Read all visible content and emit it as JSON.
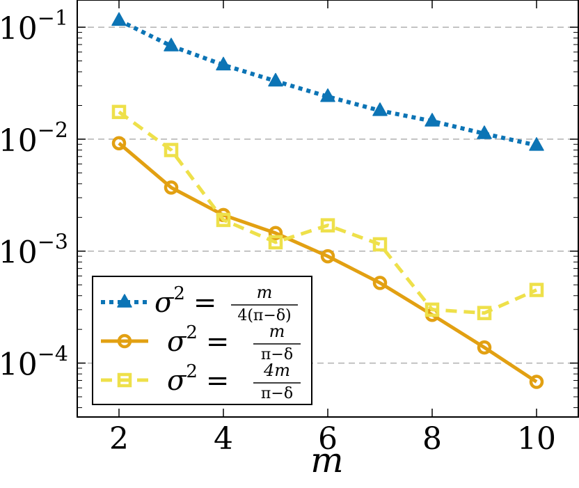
{
  "chart_data": {
    "type": "line",
    "xlabel": "m",
    "ylabel": "",
    "scale": {
      "x": "linear",
      "y": "log"
    },
    "xlim": [
      1.2,
      10.8
    ],
    "ylim": [
      3.3e-05,
      0.175
    ],
    "grid": "horizontal dashed at y major ticks",
    "legend_position": "bottom-left",
    "x_ticks": [
      2,
      4,
      6,
      8,
      10
    ],
    "x_tick_labels": [
      "2",
      "4",
      "6",
      "8",
      "10"
    ],
    "y_ticks": [
      0.1,
      0.01,
      0.001,
      0.0001
    ],
    "y_tick_labels": [
      {
        "base": "10",
        "exp": "−1"
      },
      {
        "base": "10",
        "exp": "−2"
      },
      {
        "base": "10",
        "exp": "−3"
      },
      {
        "base": "10",
        "exp": "−4"
      }
    ],
    "series": [
      {
        "legend": {
          "lhs": "σ",
          "sup": "2",
          "eq": "=",
          "num": "m",
          "den": "4(π−δ)"
        },
        "color": "#0C74B5",
        "line_style": "dotted",
        "marker": "triangle",
        "x": [
          2,
          3,
          4,
          5,
          6,
          7,
          8,
          9,
          10
        ],
        "y": [
          0.115,
          0.068,
          0.046,
          0.033,
          0.024,
          0.018,
          0.0145,
          0.0112,
          0.0088
        ]
      },
      {
        "legend": {
          "lhs": "σ",
          "sup": "2",
          "eq": "=",
          "num": "m",
          "den": "π−δ"
        },
        "color": "#E2A012",
        "line_style": "solid",
        "marker": "circle",
        "x": [
          2,
          3,
          4,
          5,
          6,
          7,
          8,
          9,
          10
        ],
        "y": [
          0.0092,
          0.0037,
          0.0021,
          0.00145,
          0.0009,
          0.00052,
          0.00027,
          0.000138,
          6.8e-05
        ]
      },
      {
        "legend": {
          "lhs": "σ",
          "sup": "2",
          "eq": "=",
          "num": "4m",
          "den": "π−δ"
        },
        "color": "#EEE04A",
        "line_style": "dashed",
        "marker": "square",
        "x": [
          2,
          3,
          4,
          5,
          6,
          7,
          8,
          9,
          10
        ],
        "y": [
          0.0175,
          0.008,
          0.0019,
          0.0012,
          0.0017,
          0.00115,
          0.0003,
          0.00028,
          0.00045
        ]
      }
    ]
  }
}
